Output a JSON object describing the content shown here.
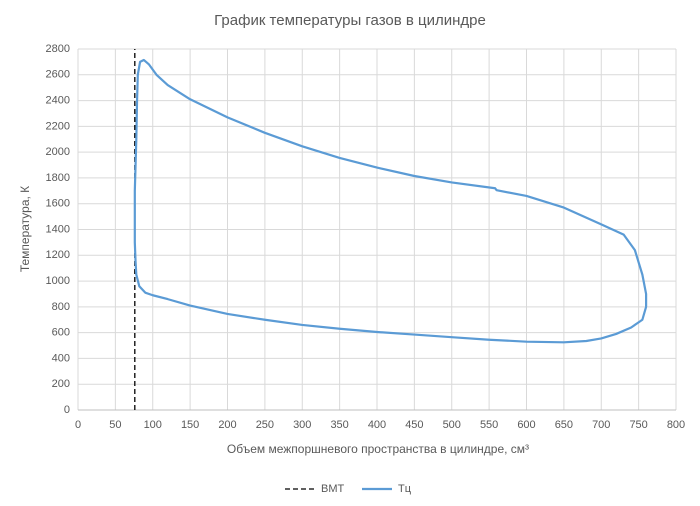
{
  "chart_data": {
    "type": "line",
    "title": "График температуры газов в цилиндре",
    "x_label": "Объем межпоршневого пространства в цилиндре, см³",
    "y_label": "Температура, К",
    "xlim": [
      0,
      800
    ],
    "ylim": [
      0,
      2800
    ],
    "xticks": [
      0,
      50,
      100,
      150,
      200,
      250,
      300,
      350,
      400,
      450,
      500,
      550,
      600,
      650,
      700,
      750,
      800
    ],
    "yticks": [
      0,
      200,
      400,
      600,
      800,
      1000,
      1200,
      1400,
      1600,
      1800,
      2000,
      2200,
      2400,
      2600,
      2800
    ],
    "grid": true,
    "legend": "bottom",
    "series": [
      {
        "name": "ВМТ",
        "color": "#000000",
        "dashed": true,
        "x": [
          76,
          76
        ],
        "values": [
          0,
          2800
        ]
      },
      {
        "name": "Тц",
        "color": "#5b9bd5",
        "dashed": false,
        "x": [
          760,
          755,
          740,
          720,
          700,
          680,
          650,
          600,
          550,
          500,
          450,
          400,
          350,
          300,
          250,
          200,
          150,
          120,
          100,
          90,
          82,
          78,
          77,
          76,
          76,
          76,
          77,
          78,
          79,
          80,
          83,
          88,
          95,
          105,
          120,
          150,
          200,
          250,
          300,
          350,
          400,
          450,
          500,
          558,
          560,
          600,
          650,
          700,
          730,
          745,
          755,
          760,
          760
        ],
        "values": [
          800,
          700,
          640,
          590,
          555,
          535,
          525,
          530,
          545,
          565,
          585,
          605,
          630,
          660,
          700,
          745,
          810,
          860,
          890,
          910,
          960,
          1050,
          1150,
          1300,
          1500,
          1700,
          1900,
          2100,
          2400,
          2600,
          2700,
          2715,
          2680,
          2600,
          2520,
          2410,
          2270,
          2150,
          2045,
          1955,
          1880,
          1815,
          1765,
          1720,
          1705,
          1660,
          1570,
          1440,
          1360,
          1240,
          1050,
          900,
          800
        ]
      }
    ]
  }
}
